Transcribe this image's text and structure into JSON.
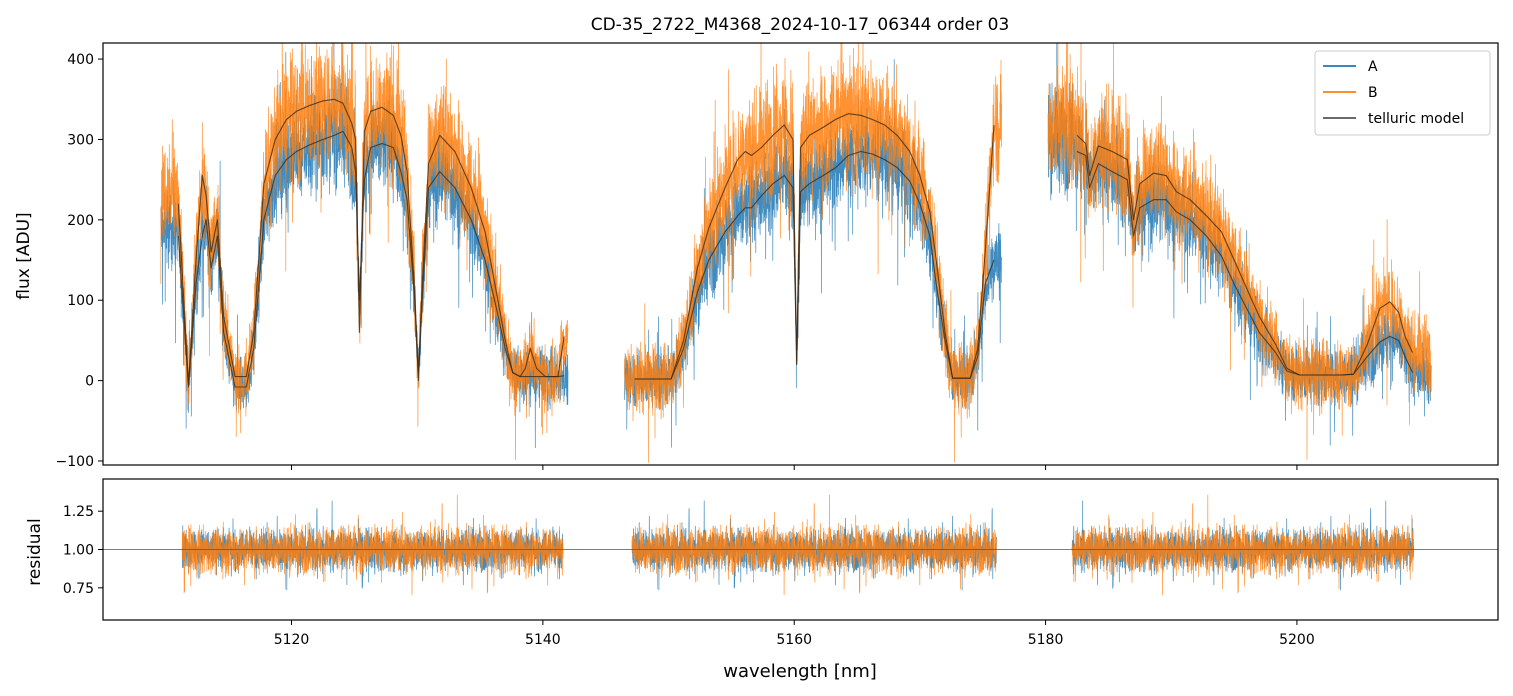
{
  "chart_data": [
    {
      "type": "line",
      "panel": "flux",
      "title": "CD-35_2722_M4368_2024-10-17_06344  order 03",
      "xlabel": "",
      "ylabel": "flux [ADU]",
      "xlim": [
        5105,
        5216
      ],
      "ylim": [
        -105,
        420
      ],
      "yticks": [
        -100,
        0,
        100,
        200,
        300,
        400
      ],
      "xticks": [
        5120,
        5140,
        5160,
        5180,
        5200
      ],
      "legend": {
        "placement": "top-right",
        "entries": [
          "A",
          "B",
          "telluric model"
        ]
      },
      "segments": [
        {
          "xrange": [
            5109.6,
            5142.0
          ],
          "pattern": "uniform noise bands around the model, flux dips near 5111, 5115, 5125, 5130 and 5138"
        },
        {
          "xrange": [
            5146.5,
            5176.5
          ],
          "pattern": "rising continuum with deep narrow telluric lines between 5148 and 5175"
        },
        {
          "xrange": [
            5180.2,
            5210.7
          ],
          "pattern": "declining continuum with lines near 5183, 5187, 5189, 5195, 5207"
        }
      ],
      "series": [
        {
          "name": "A",
          "color": "#1f77b4",
          "model_x": [
            5111.0,
            5111.8,
            5112.4,
            5112.9,
            5113.2,
            5113.6,
            5114.1,
            5114.6,
            5115.5,
            5116.4,
            5117.0,
            5117.8,
            5118.7,
            5119.6,
            5120.4,
            5121.4,
            5122.5,
            5123.4,
            5124.1,
            5124.8,
            5125.1,
            5125.4,
            5125.8,
            5126.3,
            5127.2,
            5128.1,
            5128.7,
            5129.2,
            5129.8,
            5130.1,
            5130.4,
            5130.9,
            5131.8,
            5133.0,
            5134.3,
            5135.4,
            5136.3,
            5137.0,
            5137.6,
            5138.2,
            5138.6,
            5139.0,
            5139.5,
            5140.2,
            5141.2,
            5141.7
          ],
          "model_y": [
            180,
            -8,
            120,
            180,
            200,
            140,
            180,
            60,
            -8,
            -8,
            40,
            200,
            255,
            275,
            285,
            293,
            300,
            305,
            310,
            290,
            260,
            100,
            250,
            290,
            295,
            290,
            260,
            225,
            100,
            0,
            100,
            240,
            260,
            240,
            200,
            150,
            90,
            40,
            10,
            5,
            5,
            5,
            5,
            5,
            5,
            6
          ],
          "model_x2": [
            5147.3,
            5150.2,
            5151.2,
            5152.3,
            5153.2,
            5154.5,
            5155.5,
            5156.1,
            5156.6,
            5157.4,
            5158.3,
            5159.2,
            5159.9,
            5160.2,
            5160.5,
            5161.2,
            5162.3,
            5163.3,
            5164.3,
            5165.3,
            5166.2,
            5167.2,
            5168.2,
            5169.2,
            5170.0,
            5170.8,
            5171.3,
            5172.0,
            5172.6,
            5173.3,
            5174.0,
            5174.6,
            5175.2,
            5175.9
          ],
          "model_y2": [
            2,
            2,
            40,
            110,
            150,
            185,
            205,
            215,
            215,
            230,
            245,
            255,
            240,
            20,
            235,
            245,
            255,
            265,
            280,
            285,
            282,
            275,
            265,
            248,
            220,
            180,
            120,
            50,
            3,
            3,
            3,
            30,
            120,
            150
          ],
          "model_x3": [
            5182.5,
            5183.2,
            5183.5,
            5184.2,
            5185.3,
            5186.5,
            5187.0,
            5187.5,
            5188.6,
            5189.6,
            5190.4,
            5191.5,
            5192.8,
            5194.0,
            5195.0,
            5196.0,
            5197.0,
            5198.3,
            5199.2,
            5200.2,
            5201.2,
            5202.5,
            5203.6,
            5204.5,
            5205.6,
            5206.6,
            5207.4,
            5208.1,
            5208.6,
            5209.2
          ],
          "model_y3": [
            285,
            280,
            240,
            270,
            260,
            250,
            180,
            215,
            225,
            225,
            210,
            200,
            180,
            155,
            120,
            90,
            60,
            35,
            12,
            7,
            7,
            7,
            7,
            8,
            30,
            48,
            55,
            50,
            30,
            10
          ],
          "noise_scale": 55
        },
        {
          "name": "B",
          "color": "#ff7f0e",
          "model_x": [
            5111.0,
            5111.8,
            5112.4,
            5112.9,
            5113.2,
            5113.6,
            5114.1,
            5114.6,
            5115.5,
            5116.4,
            5117.0,
            5117.8,
            5118.7,
            5119.6,
            5120.4,
            5121.4,
            5122.5,
            5123.4,
            5124.1,
            5124.8,
            5125.1,
            5125.4,
            5125.8,
            5126.3,
            5127.2,
            5128.1,
            5128.7,
            5129.2,
            5129.8,
            5130.1,
            5130.4,
            5130.9,
            5131.8,
            5133.0,
            5134.3,
            5135.4,
            5136.3,
            5137.0,
            5137.6,
            5138.2,
            5138.6,
            5139.0,
            5139.5,
            5140.2,
            5141.2,
            5141.7
          ],
          "model_y": [
            220,
            -5,
            150,
            255,
            230,
            160,
            200,
            80,
            5,
            5,
            60,
            245,
            300,
            325,
            335,
            342,
            348,
            350,
            345,
            320,
            300,
            60,
            310,
            335,
            340,
            330,
            305,
            260,
            110,
            10,
            120,
            270,
            305,
            285,
            240,
            185,
            110,
            50,
            10,
            5,
            15,
            40,
            15,
            5,
            5,
            55
          ],
          "model_x2": [
            5147.3,
            5150.2,
            5151.2,
            5152.3,
            5153.2,
            5154.5,
            5155.5,
            5156.1,
            5156.6,
            5157.4,
            5158.3,
            5159.2,
            5159.9,
            5160.2,
            5160.5,
            5161.2,
            5162.3,
            5163.3,
            5164.3,
            5165.3,
            5166.2,
            5167.2,
            5168.2,
            5169.2,
            5170.0,
            5170.8,
            5171.3,
            5172.0,
            5172.6,
            5173.3,
            5174.0,
            5174.6,
            5175.2,
            5175.9
          ],
          "model_y2": [
            2,
            2,
            50,
            140,
            190,
            240,
            275,
            285,
            280,
            290,
            305,
            318,
            300,
            25,
            290,
            305,
            315,
            325,
            332,
            330,
            325,
            318,
            305,
            285,
            255,
            210,
            150,
            60,
            3,
            3,
            3,
            40,
            160,
            318
          ],
          "model_x3": [
            5182.5,
            5183.2,
            5183.5,
            5184.2,
            5185.3,
            5186.5,
            5187.0,
            5187.5,
            5188.6,
            5189.6,
            5190.4,
            5191.5,
            5192.8,
            5194.0,
            5195.0,
            5196.0,
            5197.0,
            5198.3,
            5199.2,
            5200.2,
            5201.2,
            5202.5,
            5203.6,
            5204.5,
            5205.6,
            5206.6,
            5207.4,
            5208.1,
            5208.6,
            5209.2
          ],
          "model_y3": [
            305,
            295,
            255,
            292,
            285,
            275,
            200,
            245,
            258,
            255,
            235,
            225,
            205,
            185,
            150,
            115,
            80,
            45,
            15,
            7,
            7,
            7,
            7,
            8,
            45,
            90,
            98,
            85,
            55,
            35
          ],
          "noise_scale": 65
        }
      ]
    },
    {
      "type": "line",
      "panel": "residual",
      "xlabel": "wavelength [nm]",
      "ylabel": "residual",
      "xlim": [
        5105,
        5216
      ],
      "ylim": [
        0.54,
        1.46
      ],
      "yticks": [
        0.75,
        1.0,
        1.25
      ],
      "ytick_labels": [
        "0.75",
        "1.00",
        "1.25"
      ],
      "xticks": [
        5120,
        5140,
        5160,
        5180,
        5200
      ],
      "reference_line": 1.0,
      "segments": [
        [
          5111.3,
          5141.6
        ],
        [
          5147.1,
          5176.1
        ],
        [
          5182.1,
          5209.3
        ]
      ],
      "series": [
        {
          "name": "A",
          "color": "#1f77b4",
          "center": 1.0,
          "spread": 0.17
        },
        {
          "name": "B",
          "color": "#ff7f0e",
          "center": 1.0,
          "spread": 0.19
        }
      ]
    }
  ]
}
